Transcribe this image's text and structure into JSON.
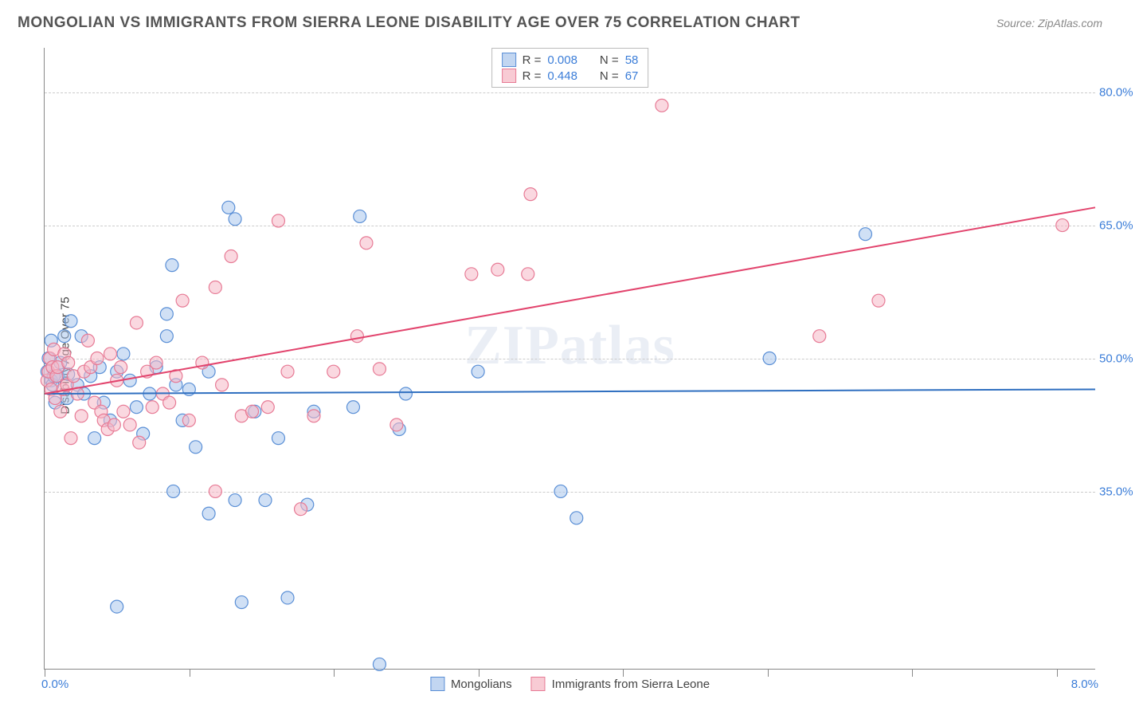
{
  "header": {
    "title": "MONGOLIAN VS IMMIGRANTS FROM SIERRA LEONE DISABILITY AGE OVER 75 CORRELATION CHART",
    "source_prefix": "Source: ",
    "source": "ZipAtlas.com"
  },
  "watermark": "ZIPatlas",
  "chart": {
    "type": "scatter",
    "ylabel": "Disability Age Over 75",
    "xlim": [
      0.0,
      8.0
    ],
    "ylim": [
      15.0,
      85.0
    ],
    "x_ticks": [
      0.0,
      1.1,
      2.2,
      3.3,
      4.4,
      5.5,
      6.6,
      7.7
    ],
    "x_axis_label_left": "0.0%",
    "x_axis_label_right": "8.0%",
    "y_grid": [
      35.0,
      50.0,
      65.0,
      80.0
    ],
    "y_tick_labels": [
      "35.0%",
      "50.0%",
      "65.0%",
      "80.0%"
    ],
    "background_color": "#ffffff",
    "grid_color": "#cccccc",
    "axis_color": "#888888",
    "text_color": "#444444",
    "value_color": "#3b7dd8",
    "marker_radius": 8,
    "marker_opacity": 0.55,
    "line_width": 2,
    "series": [
      {
        "name": "Mongolians",
        "color_fill": "#a9c7ec",
        "color_stroke": "#5a8fd6",
        "line_color": "#2f6fc0",
        "R": "0.008",
        "N": "58",
        "regression": {
          "x1": 0.0,
          "y1": 46.0,
          "x2": 8.0,
          "y2": 46.5
        },
        "points": [
          [
            0.02,
            48.5
          ],
          [
            0.03,
            50.0
          ],
          [
            0.05,
            47.5
          ],
          [
            0.05,
            52.0
          ],
          [
            0.06,
            47.0
          ],
          [
            0.07,
            48.0
          ],
          [
            0.08,
            45.0
          ],
          [
            0.1,
            48.0
          ],
          [
            0.12,
            49.5
          ],
          [
            0.15,
            52.5
          ],
          [
            0.17,
            45.5
          ],
          [
            0.18,
            48.2
          ],
          [
            0.2,
            54.2
          ],
          [
            0.25,
            47.0
          ],
          [
            0.28,
            52.5
          ],
          [
            0.3,
            46.0
          ],
          [
            0.35,
            48.0
          ],
          [
            0.38,
            41.0
          ],
          [
            0.42,
            49.0
          ],
          [
            0.45,
            45.0
          ],
          [
            0.5,
            43.0
          ],
          [
            0.55,
            48.5
          ],
          [
            0.55,
            22.0
          ],
          [
            0.6,
            50.5
          ],
          [
            0.65,
            47.5
          ],
          [
            0.7,
            44.5
          ],
          [
            0.75,
            41.5
          ],
          [
            0.8,
            46.0
          ],
          [
            0.85,
            49.0
          ],
          [
            0.93,
            52.5
          ],
          [
            0.93,
            55.0
          ],
          [
            0.97,
            60.5
          ],
          [
            0.98,
            35.0
          ],
          [
            1.0,
            47.0
          ],
          [
            1.05,
            43.0
          ],
          [
            1.1,
            46.5
          ],
          [
            1.15,
            40.0
          ],
          [
            1.25,
            32.5
          ],
          [
            1.25,
            48.5
          ],
          [
            1.4,
            67.0
          ],
          [
            1.45,
            34.0
          ],
          [
            1.45,
            65.7
          ],
          [
            1.5,
            22.5
          ],
          [
            1.6,
            44.0
          ],
          [
            1.68,
            34.0
          ],
          [
            1.78,
            41.0
          ],
          [
            1.85,
            23.0
          ],
          [
            2.0,
            33.5
          ],
          [
            2.05,
            44.0
          ],
          [
            2.35,
            44.5
          ],
          [
            2.4,
            66.0
          ],
          [
            2.55,
            15.5
          ],
          [
            2.7,
            42.0
          ],
          [
            2.75,
            46.0
          ],
          [
            3.3,
            48.5
          ],
          [
            3.93,
            35.0
          ],
          [
            4.05,
            32.0
          ],
          [
            5.52,
            50.0
          ],
          [
            6.25,
            64.0
          ]
        ]
      },
      {
        "name": "Immigrants from Sierra Leone",
        "color_fill": "#f5b8c6",
        "color_stroke": "#e77a95",
        "line_color": "#e2446d",
        "R": "0.448",
        "N": "67",
        "regression": {
          "x1": 0.0,
          "y1": 46.0,
          "x2": 8.0,
          "y2": 67.0
        },
        "points": [
          [
            0.02,
            47.5
          ],
          [
            0.03,
            48.5
          ],
          [
            0.04,
            50.0
          ],
          [
            0.05,
            46.5
          ],
          [
            0.06,
            49.0
          ],
          [
            0.07,
            51.0
          ],
          [
            0.08,
            45.5
          ],
          [
            0.09,
            48.0
          ],
          [
            0.1,
            49.0
          ],
          [
            0.12,
            44.0
          ],
          [
            0.14,
            46.5
          ],
          [
            0.15,
            50.5
          ],
          [
            0.17,
            47.0
          ],
          [
            0.18,
            49.5
          ],
          [
            0.2,
            41.0
          ],
          [
            0.22,
            48.0
          ],
          [
            0.25,
            46.0
          ],
          [
            0.28,
            43.5
          ],
          [
            0.3,
            48.5
          ],
          [
            0.33,
            52.0
          ],
          [
            0.35,
            49.0
          ],
          [
            0.38,
            45.0
          ],
          [
            0.4,
            50.0
          ],
          [
            0.43,
            44.0
          ],
          [
            0.45,
            43.0
          ],
          [
            0.48,
            42.0
          ],
          [
            0.5,
            50.5
          ],
          [
            0.53,
            42.5
          ],
          [
            0.55,
            47.5
          ],
          [
            0.58,
            49.0
          ],
          [
            0.6,
            44.0
          ],
          [
            0.65,
            42.5
          ],
          [
            0.7,
            54.0
          ],
          [
            0.72,
            40.5
          ],
          [
            0.78,
            48.5
          ],
          [
            0.82,
            44.5
          ],
          [
            0.85,
            49.5
          ],
          [
            0.9,
            46.0
          ],
          [
            0.95,
            45.0
          ],
          [
            1.0,
            48.0
          ],
          [
            1.05,
            56.5
          ],
          [
            1.1,
            43.0
          ],
          [
            1.2,
            49.5
          ],
          [
            1.3,
            58.0
          ],
          [
            1.3,
            35.0
          ],
          [
            1.35,
            47.0
          ],
          [
            1.42,
            61.5
          ],
          [
            1.5,
            43.5
          ],
          [
            1.58,
            44.0
          ],
          [
            1.7,
            44.5
          ],
          [
            1.78,
            65.5
          ],
          [
            1.85,
            48.5
          ],
          [
            1.95,
            33.0
          ],
          [
            2.05,
            43.5
          ],
          [
            2.2,
            48.5
          ],
          [
            2.38,
            52.5
          ],
          [
            2.45,
            63.0
          ],
          [
            2.55,
            48.8
          ],
          [
            2.68,
            42.5
          ],
          [
            3.25,
            59.5
          ],
          [
            3.45,
            60.0
          ],
          [
            3.68,
            59.5
          ],
          [
            3.7,
            68.5
          ],
          [
            4.7,
            78.5
          ],
          [
            5.9,
            52.5
          ],
          [
            6.35,
            56.5
          ],
          [
            7.75,
            65.0
          ]
        ]
      }
    ]
  },
  "legend_bottom": {
    "label_a": "Mongolians",
    "label_b": "Immigrants from Sierra Leone"
  },
  "legend_top": {
    "r_label": "R =",
    "n_label": "N ="
  }
}
